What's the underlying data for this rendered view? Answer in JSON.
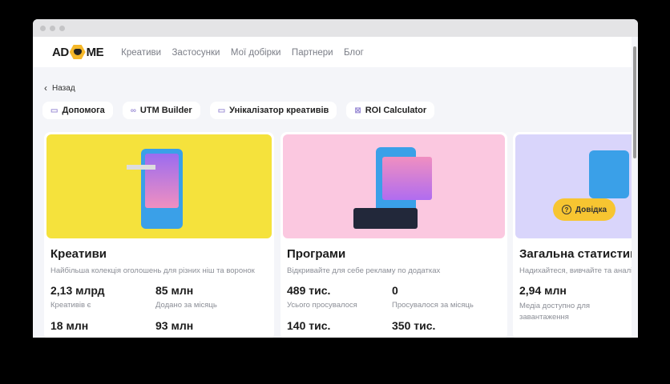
{
  "header": {
    "logo": "AD ME",
    "nav": [
      "Креативи",
      "Застосунки",
      "Мої добірки",
      "Партнери",
      "Блог"
    ]
  },
  "back_label": "Назад",
  "tools": [
    {
      "icon": "chat-icon",
      "label": "Допомога"
    },
    {
      "icon": "link-icon",
      "label": "UTM Builder"
    },
    {
      "icon": "monitor-icon",
      "label": "Унікалізатор креативів"
    },
    {
      "icon": "calculator-icon",
      "label": "ROI Calculator"
    }
  ],
  "cards": [
    {
      "title": "Креативи",
      "subtitle": "Найбільша колекція оголошень для різних ніш та воронок",
      "bg": "#f5e23c",
      "stats": [
        {
          "value": "2,13 млрд",
          "label": "Креативів є"
        },
        {
          "value": "85 млн",
          "label": "Додано за місяць"
        },
        {
          "value": "18 млн",
          "label": ""
        },
        {
          "value": "93 млн",
          "label": ""
        }
      ]
    },
    {
      "title": "Програми",
      "subtitle": "Відкривайте для себе рекламу по додатках",
      "bg": "#fbc8e0",
      "stats": [
        {
          "value": "489 тис.",
          "label": "Усього просувалося"
        },
        {
          "value": "0",
          "label": "Просувалося за місяць"
        },
        {
          "value": "140 тис.",
          "label": ""
        },
        {
          "value": "350 тис.",
          "label": ""
        }
      ]
    },
    {
      "title": "Загальна статистика",
      "subtitle": "Надихайтеся, вивчайте та аналізуйте",
      "bg": "#d9d5fb",
      "stats": [
        {
          "value": "2,94 млн",
          "label": "Медіа доступно для завантаження"
        }
      ]
    }
  ],
  "help_label": "Довідка"
}
